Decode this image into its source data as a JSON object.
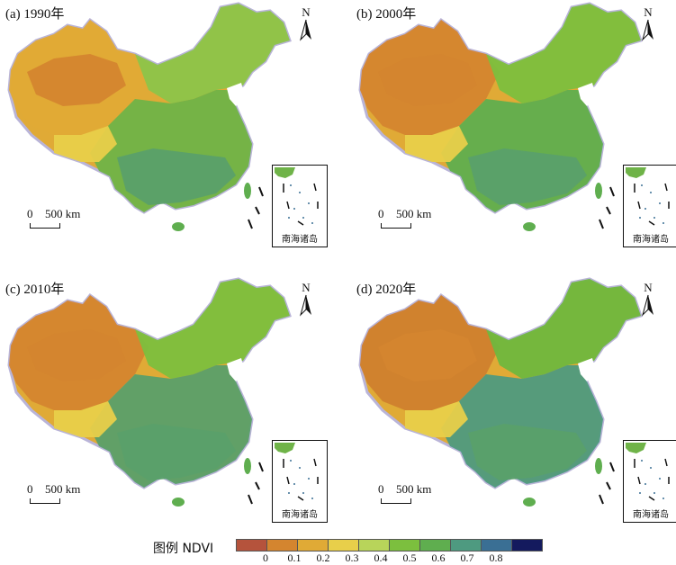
{
  "panels": [
    {
      "label": "(a) 1990年",
      "scale": {
        "zero": "0",
        "dist": "500 km"
      },
      "north": "N",
      "inset_label": "南海诸岛",
      "variant": 0
    },
    {
      "label": "(b) 2000年",
      "scale": {
        "zero": "0",
        "dist": "500 km"
      },
      "north": "N",
      "inset_label": "南海诸岛",
      "variant": 1
    },
    {
      "label": "(c) 2010年",
      "scale": {
        "zero": "0",
        "dist": "500 km"
      },
      "north": "N",
      "inset_label": "南海诸岛",
      "variant": 2
    },
    {
      "label": "(d) 2020年",
      "scale": {
        "zero": "0",
        "dist": "500 km"
      },
      "north": "N",
      "inset_label": "南海诸岛",
      "variant": 3
    }
  ],
  "legend": {
    "title": "图例  NDVI",
    "ticks": [
      "0",
      "0.1",
      "0.2",
      "0.3",
      "0.4",
      "0.5",
      "0.6",
      "0.7",
      "0.8"
    ],
    "colors": [
      "#b5533c",
      "#d4852f",
      "#e0aa36",
      "#e8cf4a",
      "#b8d45a",
      "#7cbf3e",
      "#5fae4f",
      "#4e9a80",
      "#3a6f94",
      "#141a5e"
    ]
  }
}
